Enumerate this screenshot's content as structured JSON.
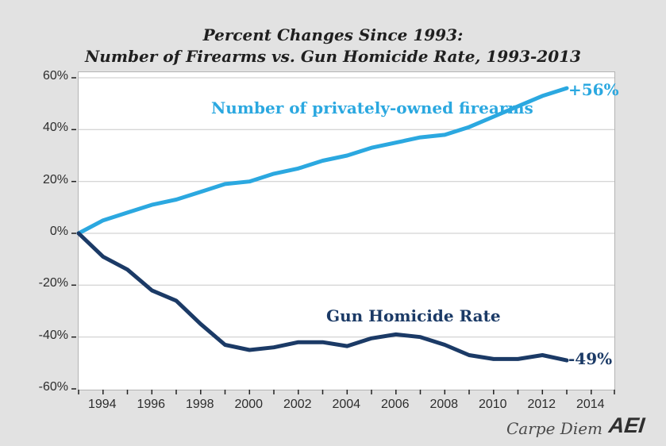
{
  "title": {
    "line1": "Percent Changes Since 1993:",
    "line2": "Number of Firearms vs. Gun Homicide Rate, 1993-2013"
  },
  "branding": {
    "credit": "Carpe Diem",
    "logo": "AEI"
  },
  "colors": {
    "background": "#e2e2e2",
    "plot_background": "#ffffff",
    "gridline": "#c8c8c8",
    "axis_tick": "#222222",
    "firearms_blue": "#2ba8e0",
    "homicide_navy": "#1b3a66"
  },
  "chart_data": {
    "type": "line",
    "title": "Percent Changes Since 1993: Number of Firearms vs. Gun Homicide Rate, 1993-2013",
    "x": [
      1993,
      1994,
      1995,
      1996,
      1997,
      1998,
      1999,
      2000,
      2001,
      2002,
      2003,
      2004,
      2005,
      2006,
      2007,
      2008,
      2009,
      2010,
      2011,
      2012,
      2013
    ],
    "series": [
      {
        "name": "Number of privately-owned firearms",
        "color": "#2ba8e0",
        "end_label": "+56%",
        "values": [
          0,
          5,
          8,
          11,
          13,
          16,
          19,
          20,
          23,
          25,
          28,
          30,
          33,
          35,
          37,
          38,
          41,
          45,
          49,
          53,
          56
        ]
      },
      {
        "name": "Gun Homicide Rate",
        "color": "#1b3a66",
        "end_label": "-49%",
        "values": [
          0,
          -9,
          -14,
          -22,
          -26,
          -35,
          -43,
          -45,
          -44,
          -42,
          -42,
          -43.5,
          -40.5,
          -39,
          -40,
          -43,
          -47,
          -48.5,
          -48.5,
          -47,
          -49
        ]
      }
    ],
    "ylim": [
      -60,
      60
    ],
    "ytick_values": [
      60,
      40,
      20,
      0,
      -20,
      -40,
      -60
    ],
    "ytick_labels": [
      "60%",
      "40%",
      "20%",
      "0%",
      "-20%",
      "-40%",
      "-60%"
    ],
    "xtick_label_years": [
      1994,
      1996,
      1998,
      2000,
      2002,
      2004,
      2006,
      2008,
      2010,
      2012,
      2014
    ],
    "xtick_labels": [
      "1994",
      "1996",
      "1998",
      "2000",
      "2002",
      "2004",
      "2006",
      "2008",
      "2010",
      "2012",
      "2014"
    ],
    "xlim": [
      1993,
      2014.95
    ],
    "grid": true,
    "legend_position": "inline-labels"
  }
}
